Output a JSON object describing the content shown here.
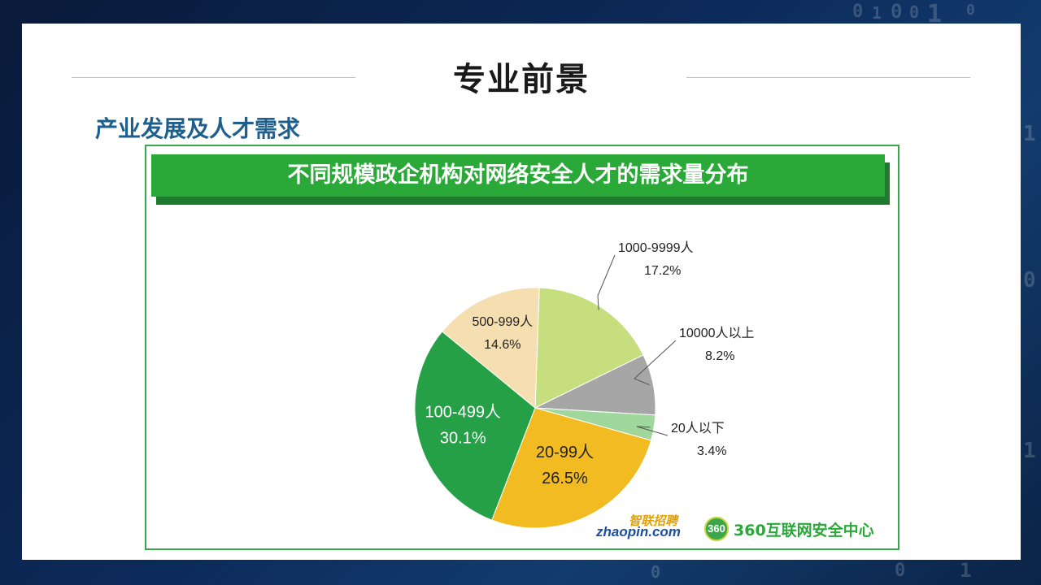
{
  "slide": {
    "title": "专业前景",
    "subtitle": "产业发展及人才需求"
  },
  "chart_data": {
    "type": "pie",
    "title": "不同规模政企机构对网络安全人才的需求量分布",
    "slices": [
      {
        "label": "1000-9999人",
        "value": 17.2,
        "value_label": "17.2%",
        "color": "#c6de7d"
      },
      {
        "label": "10000人以上",
        "value": 8.2,
        "value_label": "8.2%",
        "color": "#a6a6a6"
      },
      {
        "label": "20人以下",
        "value": 3.4,
        "value_label": "3.4%",
        "color": "#9fd79d"
      },
      {
        "label": "20-99人",
        "value": 26.5,
        "value_label": "26.5%",
        "color": "#f2bb22"
      },
      {
        "label": "100-499人",
        "value": 30.1,
        "value_label": "30.1%",
        "color": "#26a047"
      },
      {
        "label": "500-999人",
        "value": 14.6,
        "value_label": "14.6%",
        "color": "#f5deb0"
      }
    ]
  },
  "logos": {
    "zhaopin_cn": "智联招聘",
    "zhaopin_en": "zhaopin.com",
    "center_badge": "360",
    "center_name": "360互联网安全中心"
  },
  "bg_digits": [
    "0",
    "1",
    "0",
    "0",
    "1",
    "0",
    "1",
    "0",
    "1",
    "0",
    "1",
    "0"
  ]
}
